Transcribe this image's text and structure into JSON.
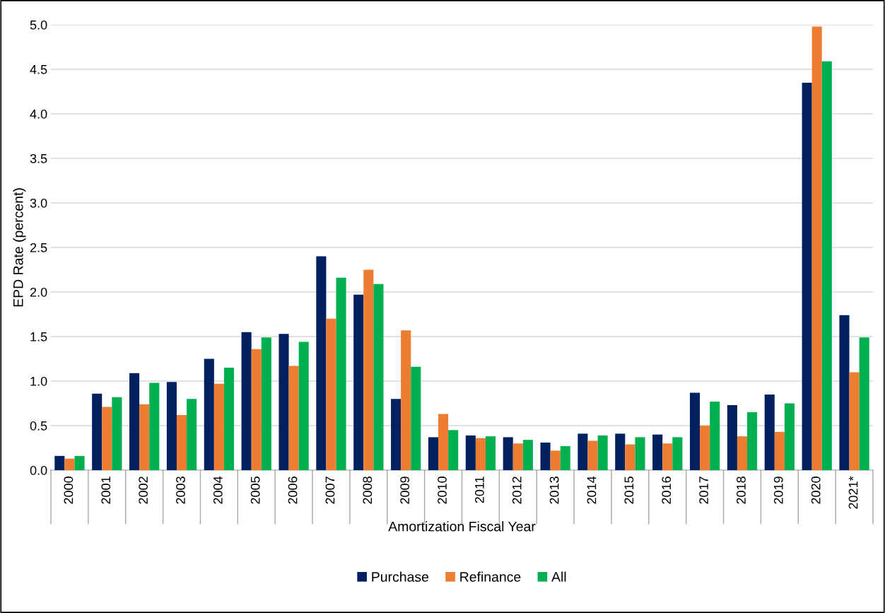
{
  "chart_data": {
    "type": "bar",
    "xlabel": "Amortization Fiscal Year",
    "ylabel": "EPD Rate (percent)",
    "categories": [
      "2000",
      "2001",
      "2002",
      "2003",
      "2004",
      "2005",
      "2006",
      "2007",
      "2008",
      "2009",
      "2010",
      "2011",
      "2012",
      "2013",
      "2014",
      "2015",
      "2016",
      "2017",
      "2018",
      "2019",
      "2020",
      "2021*"
    ],
    "series": [
      {
        "name": "Purchase",
        "color": "#002060",
        "values": [
          0.16,
          0.86,
          1.09,
          0.99,
          1.25,
          1.55,
          1.53,
          2.4,
          1.97,
          0.8,
          0.37,
          0.39,
          0.37,
          0.31,
          0.41,
          0.41,
          0.4,
          0.87,
          0.73,
          0.85,
          4.35,
          1.74
        ]
      },
      {
        "name": "Refinance",
        "color": "#ed7d31",
        "values": [
          0.13,
          0.71,
          0.74,
          0.62,
          0.97,
          1.36,
          1.17,
          1.7,
          2.25,
          1.57,
          0.63,
          0.36,
          0.3,
          0.22,
          0.33,
          0.29,
          0.3,
          0.5,
          0.38,
          0.43,
          4.98,
          1.1
        ]
      },
      {
        "name": "All",
        "color": "#00b050",
        "values": [
          0.16,
          0.82,
          0.98,
          0.8,
          1.15,
          1.49,
          1.44,
          2.16,
          2.09,
          1.16,
          0.45,
          0.38,
          0.34,
          0.27,
          0.39,
          0.37,
          0.37,
          0.77,
          0.65,
          0.75,
          4.59,
          1.49
        ]
      }
    ],
    "ylim": [
      0,
      5
    ],
    "yticks": [
      {
        "value": 0,
        "label": "0.0"
      },
      {
        "value": 0.5,
        "label": "0.5"
      },
      {
        "value": 1,
        "label": "1.0"
      },
      {
        "value": 1.5,
        "label": "1.5"
      },
      {
        "value": 2,
        "label": "2.0"
      },
      {
        "value": 2.5,
        "label": "2.5"
      },
      {
        "value": 3,
        "label": "3.0"
      },
      {
        "value": 3.5,
        "label": "3.5"
      },
      {
        "value": 4,
        "label": "4.0"
      },
      {
        "value": 4.5,
        "label": "4.5"
      },
      {
        "value": 5,
        "label": "5.0"
      }
    ],
    "grid": "y",
    "legend": "bottom"
  }
}
